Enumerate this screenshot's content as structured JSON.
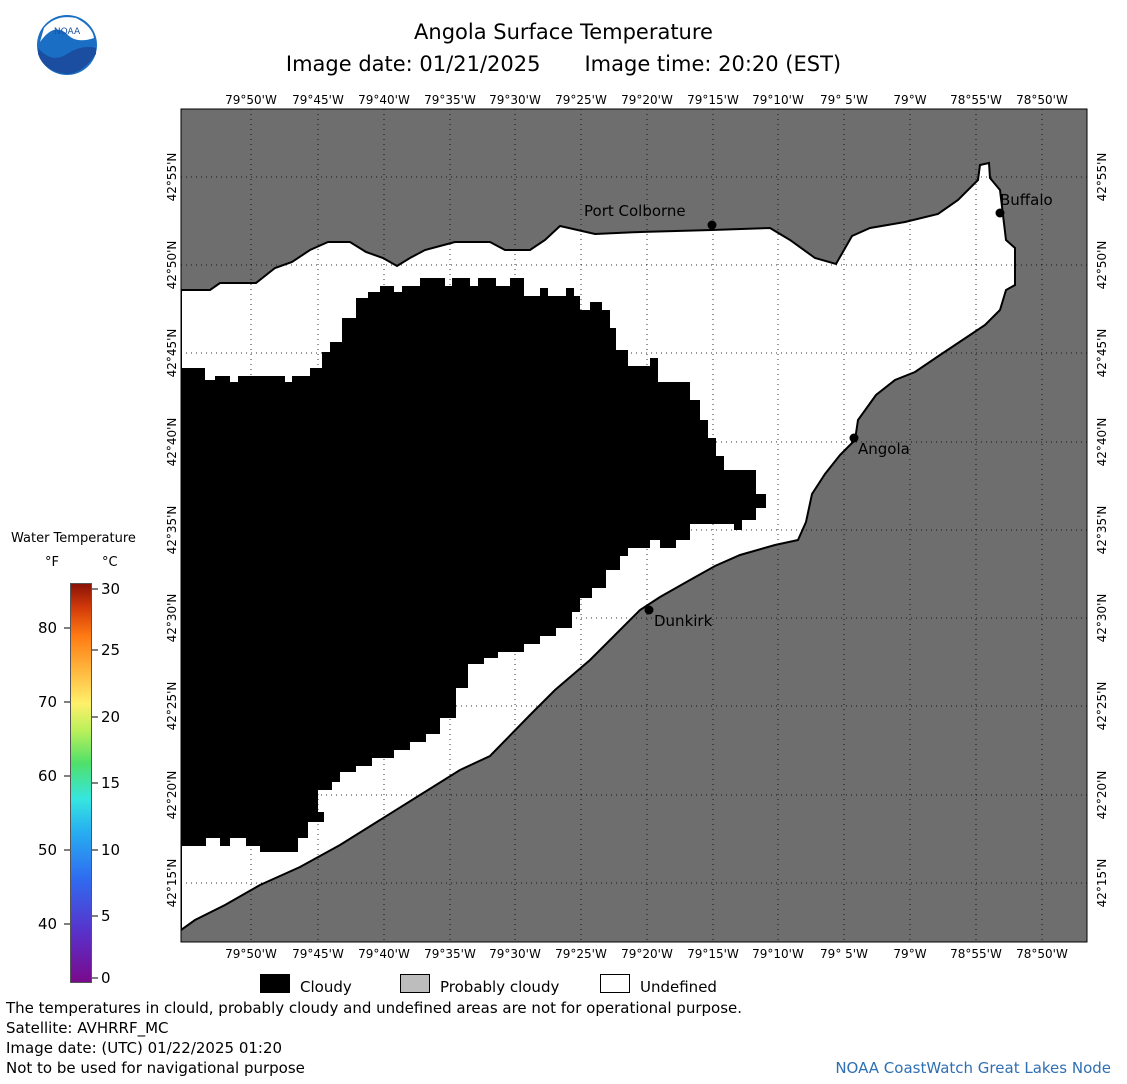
{
  "header": {
    "title": "Angola Surface Temperature",
    "image_date": "Image date: 01/21/2025",
    "image_time": "Image time: 20:20 (EST)"
  },
  "logo": {
    "text": "NOAA",
    "icon": "noaa-logo"
  },
  "map": {
    "lon_labels": [
      "79°50'W",
      "79°45'W",
      "79°40'W",
      "79°35'W",
      "79°30'W",
      "79°25'W",
      "79°20'W",
      "79°15'W",
      "79°10'W",
      "79° 5'W",
      "79°W",
      "78°55'W",
      "78°50'W"
    ],
    "lat_labels": [
      "42°55'N",
      "42°50'N",
      "42°45'N",
      "42°40'N",
      "42°35'N",
      "42°30'N",
      "42°25'N",
      "42°20'N",
      "42°15'N"
    ],
    "cities": [
      {
        "name": "Port Colborne"
      },
      {
        "name": "Buffalo"
      },
      {
        "name": "Angola"
      },
      {
        "name": "Dunkirk"
      }
    ],
    "colors": {
      "land": "#6e6e6e",
      "water_undefined": "#ffffff",
      "cloud": "#000000"
    }
  },
  "colorbar": {
    "title": "Water Temperature",
    "unit_f": "°F",
    "unit_c": "°C",
    "f_ticks": [
      "80",
      "70",
      "60",
      "50",
      "40"
    ],
    "c_ticks": [
      "30",
      "25",
      "20",
      "15",
      "10",
      "5",
      "0"
    ]
  },
  "legend": {
    "cloudy": "Cloudy",
    "probably_cloudy": "Probably cloudy",
    "undefined": "Undefined"
  },
  "footer": {
    "disclaimer": "The temperatures in clould, probably cloudy and undefined areas are not for operational purpose.",
    "satellite": "Satellite: AVHRRF_MC",
    "utc_date": "Image date: (UTC) 01/22/2025  01:20",
    "nav_note": "Not to be used for navigational purpose",
    "credit": "NOAA CoastWatch Great Lakes Node"
  }
}
